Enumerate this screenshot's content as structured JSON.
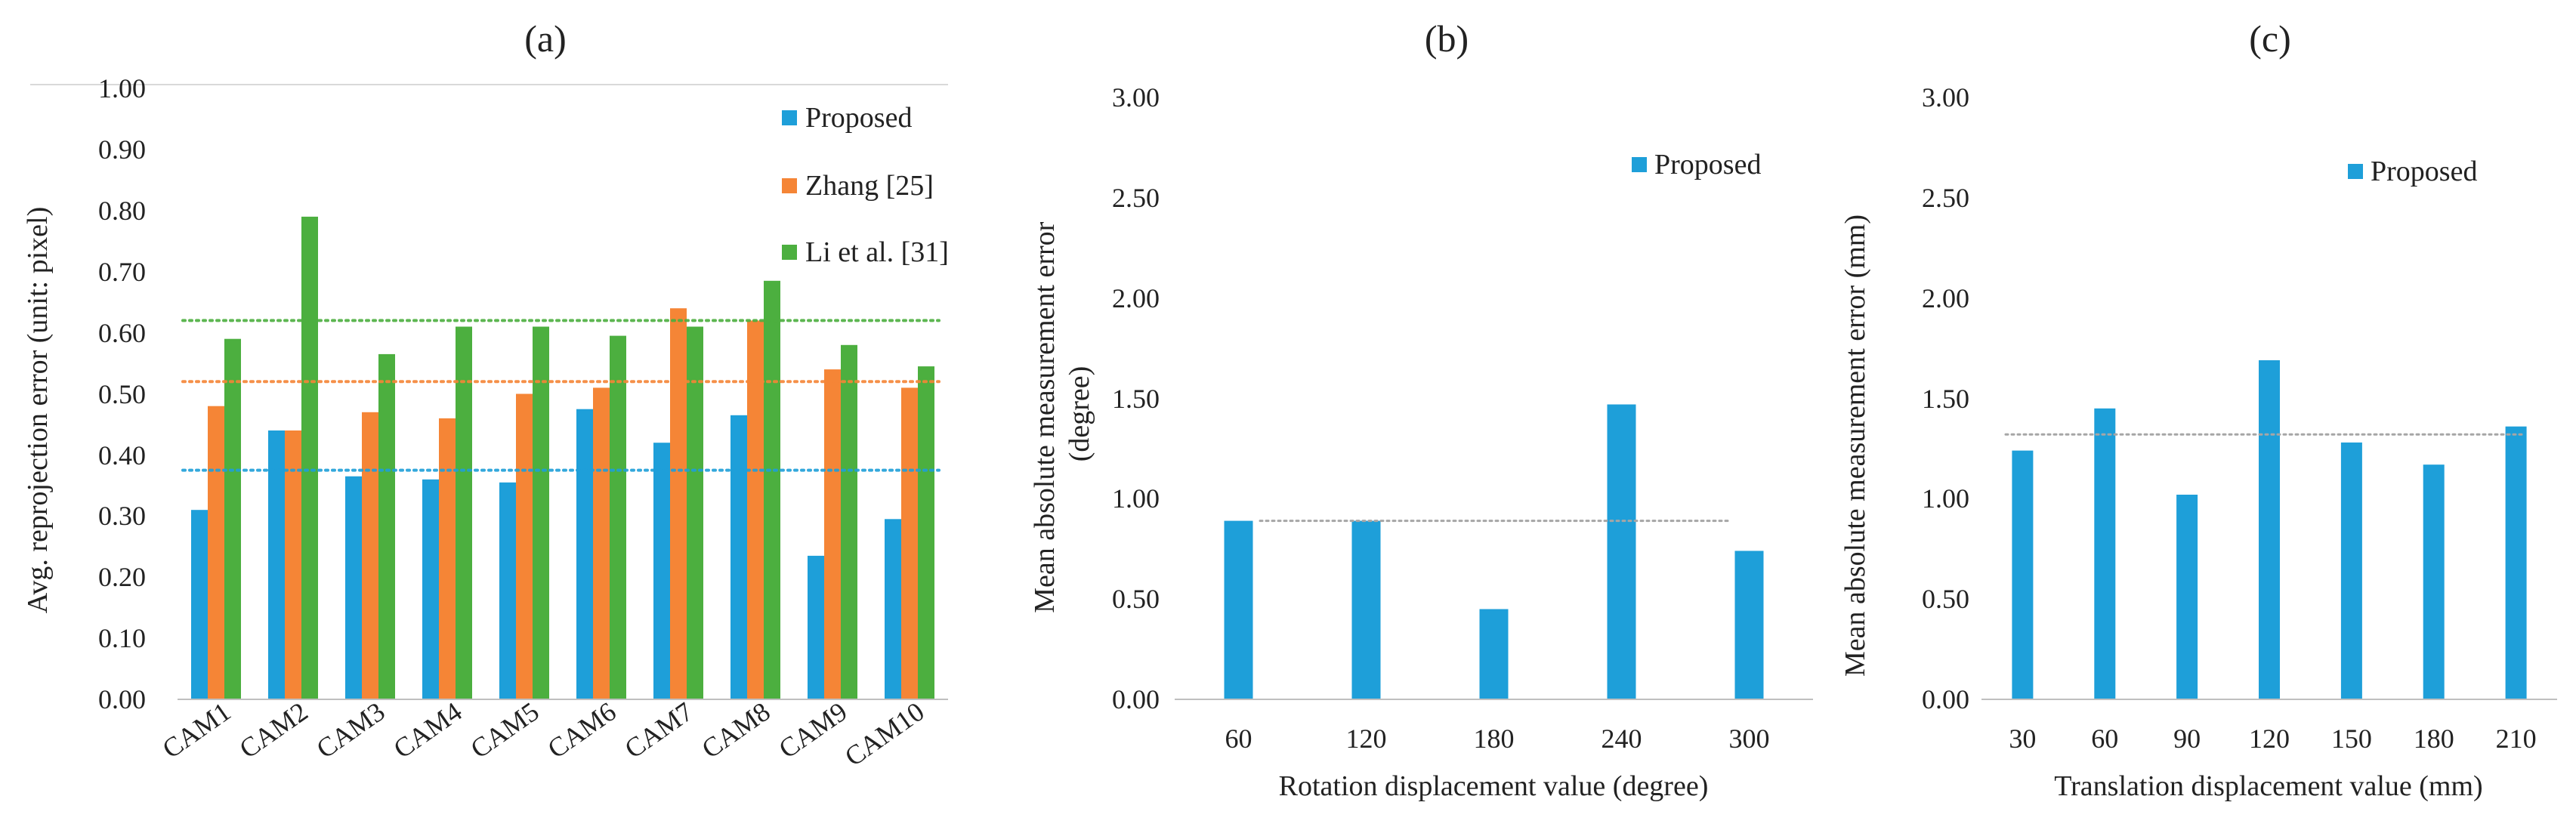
{
  "colors": {
    "proposed": "#1E9FD9",
    "zhang": "#F58536",
    "li": "#4CAF3F",
    "axis": "#BFBFBF",
    "avg_line": "#A6A6A6"
  },
  "chart_data": [
    {
      "panel": "(a)",
      "type": "bar",
      "categories": [
        "CAM1",
        "CAM2",
        "CAM3",
        "CAM4",
        "CAM5",
        "CAM6",
        "CAM7",
        "CAM8",
        "CAM9",
        "CAM10"
      ],
      "series": [
        {
          "name": "Proposed",
          "color": "#1E9FD9",
          "values": [
            0.31,
            0.44,
            0.365,
            0.36,
            0.355,
            0.475,
            0.42,
            0.465,
            0.235,
            0.295
          ],
          "mean_line": 0.375
        },
        {
          "name": "Zhang [25]",
          "color": "#F58536",
          "values": [
            0.48,
            0.44,
            0.47,
            0.46,
            0.5,
            0.51,
            0.64,
            0.62,
            0.54,
            0.51
          ],
          "mean_line": 0.52
        },
        {
          "name": "Li et al. [31]",
          "color": "#4CAF3F",
          "values": [
            0.59,
            0.79,
            0.565,
            0.61,
            0.61,
            0.595,
            0.61,
            0.685,
            0.58,
            0.545
          ],
          "mean_line": 0.62
        }
      ],
      "ylabel": "Avg. reprojection error (unit: pixel)",
      "xlabel": "",
      "ylim": [
        0,
        1.0
      ],
      "yticks": [
        "0.00",
        "0.10",
        "0.20",
        "0.30",
        "0.40",
        "0.50",
        "0.60",
        "0.70",
        "0.80",
        "0.90",
        "1.00"
      ],
      "legend_position": "top-right",
      "grid": false,
      "mean_line_style": "dotted"
    },
    {
      "panel": "(b)",
      "type": "bar",
      "categories": [
        "60",
        "120",
        "180",
        "240",
        "300"
      ],
      "series": [
        {
          "name": "Proposed",
          "color": "#1E9FD9",
          "values": [
            0.89,
            0.89,
            0.45,
            1.47,
            0.74
          ],
          "mean_line": 0.89
        }
      ],
      "ylabel": "Mean absolute measurement error (degree)",
      "xlabel": "Rotation displacement value (degree)",
      "ylim": [
        0,
        3.0
      ],
      "yticks": [
        "0.00",
        "0.50",
        "1.00",
        "1.50",
        "2.00",
        "2.50",
        "3.00"
      ],
      "legend_position": "top-right",
      "grid": false,
      "mean_line_style": "dotted"
    },
    {
      "panel": "(c)",
      "type": "bar",
      "categories": [
        "30",
        "60",
        "90",
        "120",
        "150",
        "180",
        "210"
      ],
      "series": [
        {
          "name": "Proposed",
          "color": "#1E9FD9",
          "values": [
            1.24,
            1.45,
            1.02,
            1.69,
            1.28,
            1.17,
            1.36
          ],
          "mean_line": 1.32
        }
      ],
      "ylabel": "Mean absolute measurement error (mm)",
      "xlabel": "Translation displacement value (mm)",
      "ylim": [
        0,
        3.0
      ],
      "yticks": [
        "0.00",
        "0.50",
        "1.00",
        "1.50",
        "2.00",
        "2.50",
        "3.00"
      ],
      "legend_position": "top-right",
      "grid": false,
      "mean_line_style": "dotted"
    }
  ]
}
